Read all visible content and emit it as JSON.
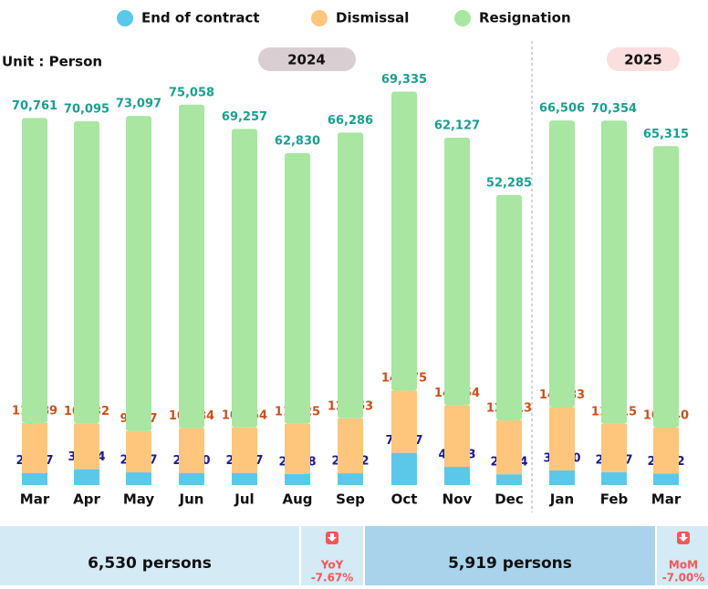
{
  "chart_data": {
    "type": "bar",
    "stacked": true,
    "unit": "Unit : Person",
    "periods": [
      "2024",
      "2025"
    ],
    "categories": [
      "Mar",
      "Apr",
      "May",
      "Jun",
      "Jul",
      "Aug",
      "Sep",
      "Oct",
      "Nov",
      "Dec",
      "Jan",
      "Feb",
      "Mar"
    ],
    "ylim": [
      0,
      110000
    ],
    "series": [
      {
        "name": "End of contract",
        "color": "#5bc8ea",
        "label_color": "#1b1b8c",
        "values": [
          2817,
          3674,
          2947,
          2820,
          2817,
          2568,
          2732,
          7477,
          4223,
          2494,
          3410,
          2987,
          2682
        ],
        "value_labels": [
          "2,817",
          "3,674",
          "2,947",
          "2,820",
          "2,817",
          "2,568",
          "2,732",
          "7,477",
          "4,223",
          "2,494",
          "3,410",
          "2,987",
          "2,682"
        ]
      },
      {
        "name": "Dismissal",
        "color": "#fdc67c",
        "label_color": "#c8501e",
        "values": [
          11589,
          10632,
          9587,
          10384,
          10554,
          11625,
          12763,
          14475,
          14254,
          12513,
          14683,
          11215,
          10640
        ],
        "value_labels": [
          "11,589",
          "10,632",
          "9,587",
          "10,384",
          "10,554",
          "11,625",
          "12,763",
          "14,475",
          "14,254",
          "12,513",
          "14,683",
          "11,215",
          "10,640"
        ]
      },
      {
        "name": "Resignation",
        "color": "#a8e6a1",
        "label_color": "#1a9e8f",
        "values": [
          70761,
          70095,
          73097,
          75058,
          69257,
          62830,
          66286,
          69335,
          62127,
          52285,
          66506,
          70354,
          65315
        ],
        "value_labels": [
          "70,761",
          "70,095",
          "73,097",
          "75,058",
          "69,257",
          "62,830",
          "66,286",
          "69,335",
          "62,127",
          "52,285",
          "66,506",
          "70,354",
          "65,315"
        ]
      }
    ]
  },
  "summary": [
    {
      "value": "6,530 persons",
      "change_label": "YoY",
      "change": "-7.67%"
    },
    {
      "value": "5,919 persons",
      "change_label": "MoM",
      "change": "-7.00%"
    }
  ]
}
